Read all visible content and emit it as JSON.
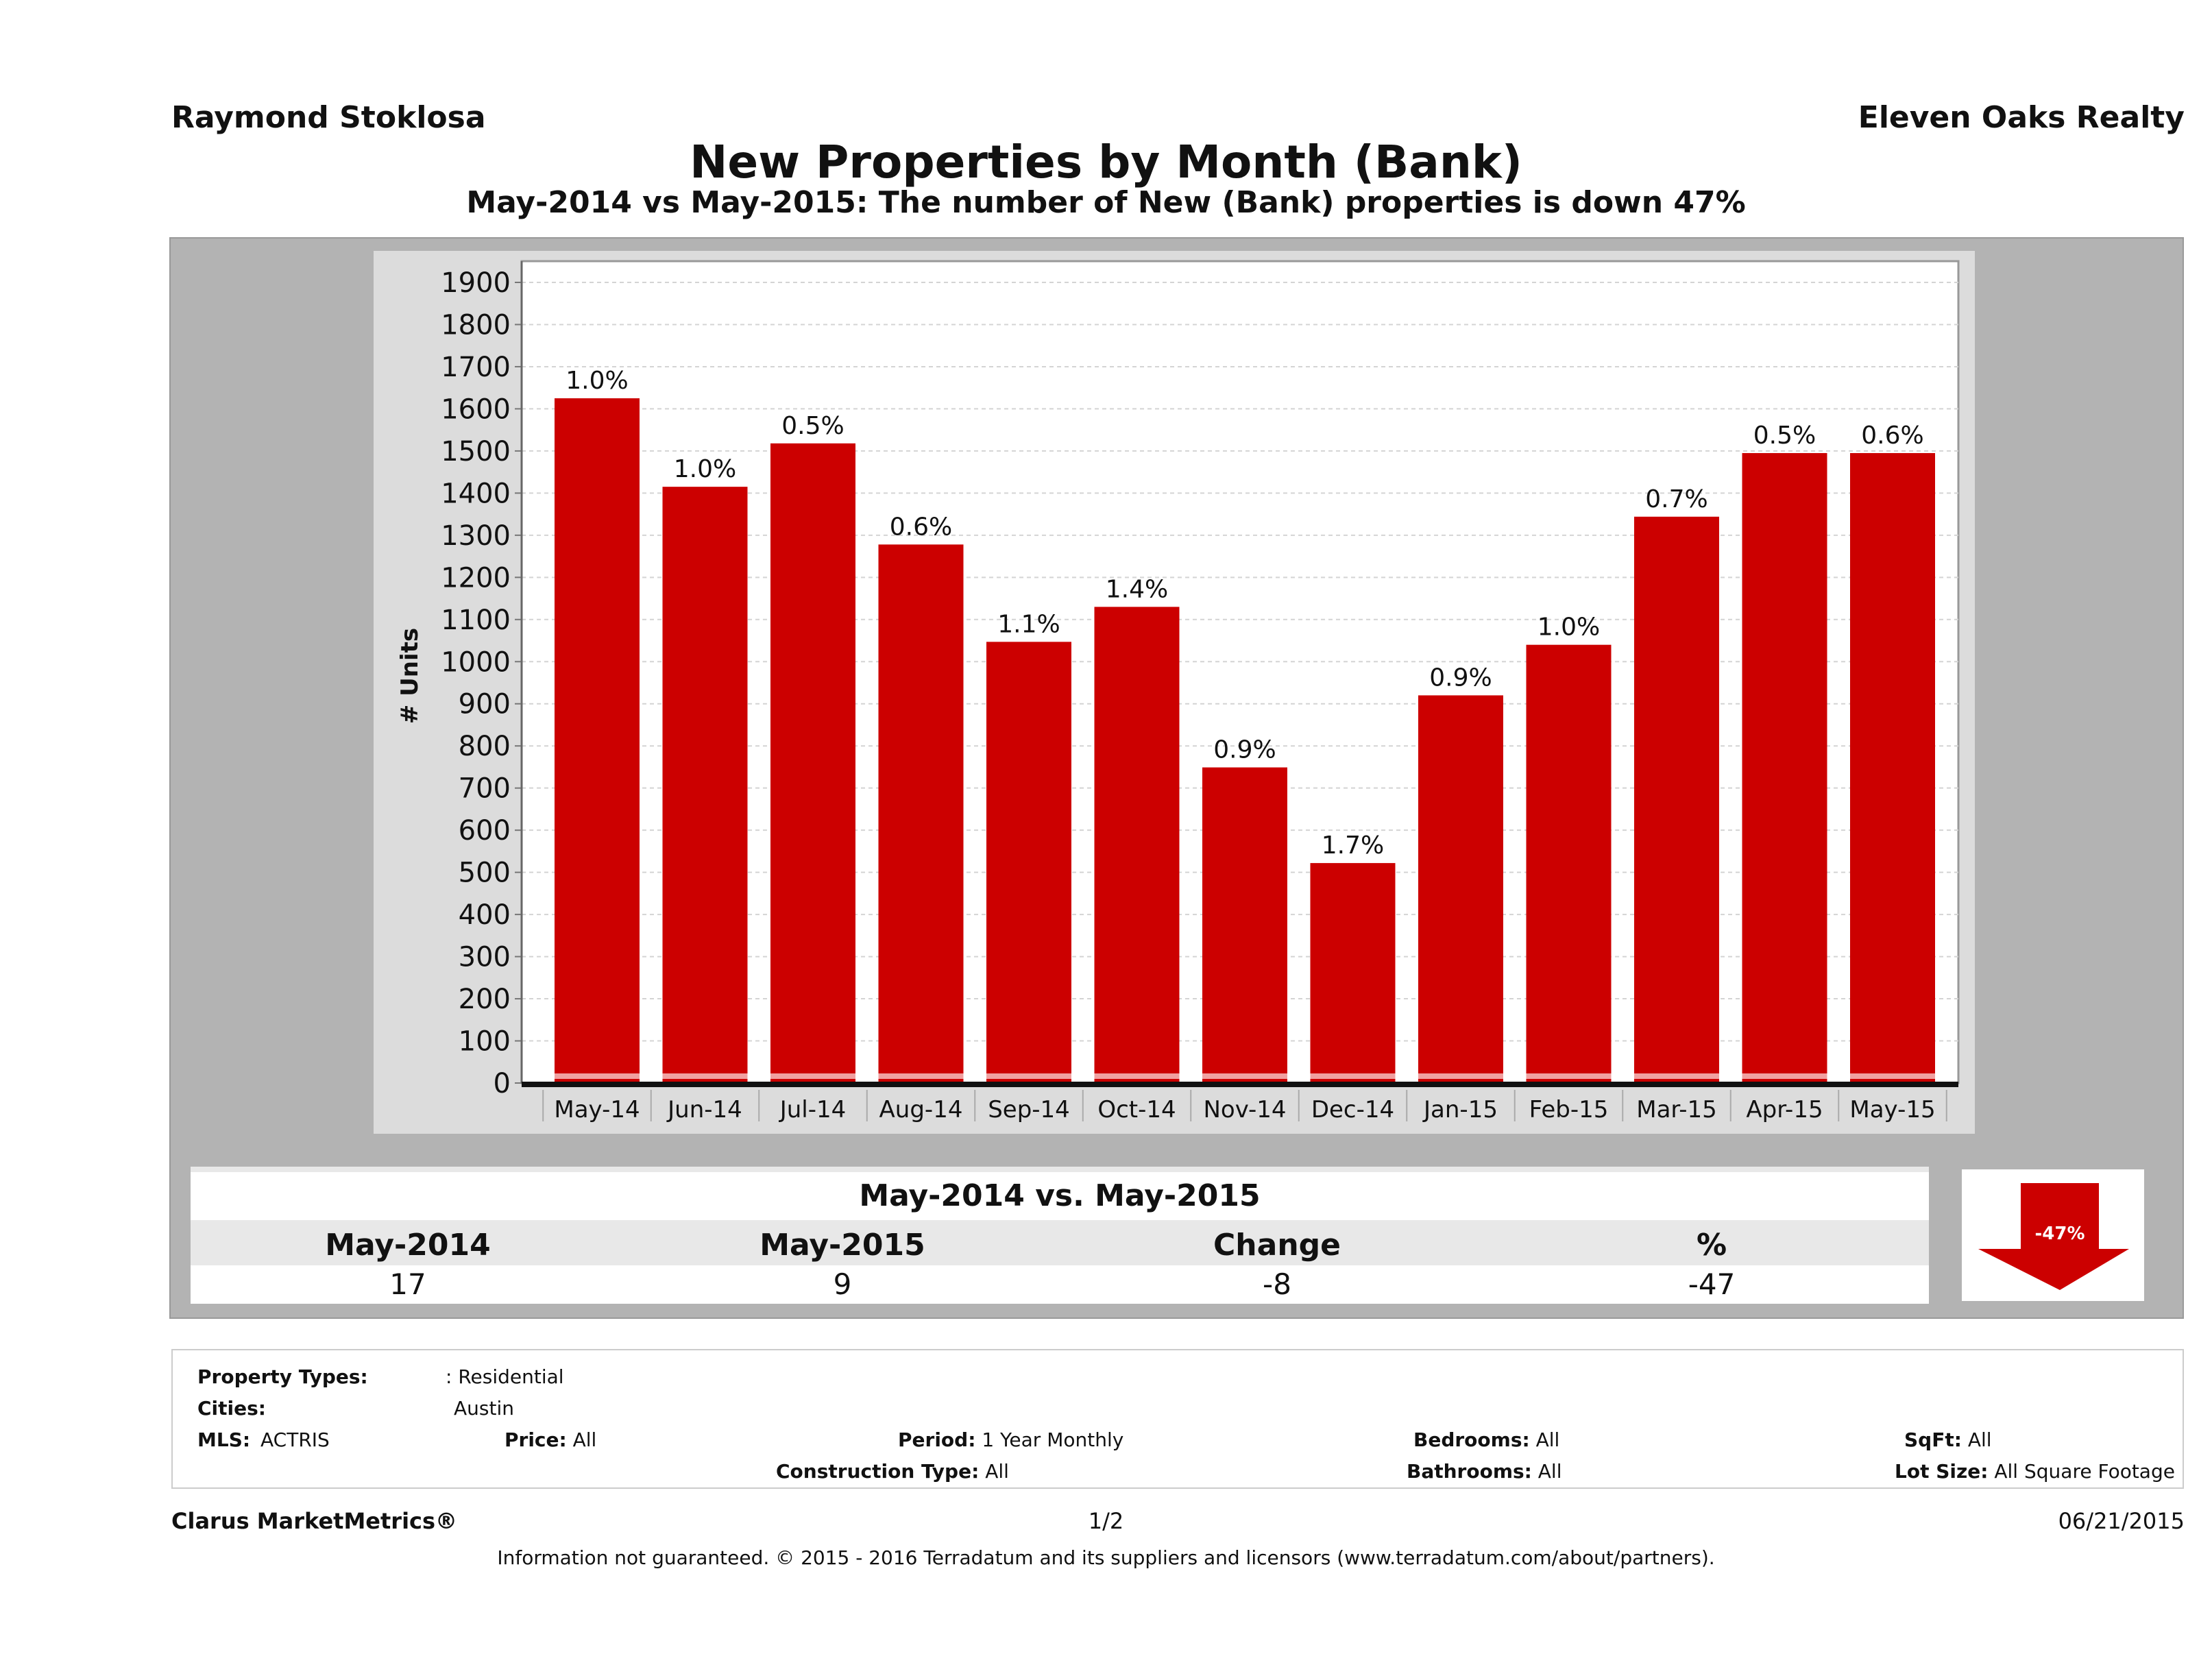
{
  "header": {
    "agent_name": "Raymond Stoklosa",
    "company_name": "Eleven Oaks Realty",
    "title": "New Properties by Month (Bank)",
    "subtitle": "May-2014 vs May-2015: The number of New (Bank)  properties is down 47%"
  },
  "chart_data": {
    "type": "bar",
    "title": "New Properties by Month (Bank)",
    "xlabel": "",
    "ylabel": "# Units",
    "ylim": [
      0,
      1900
    ],
    "yticks": [
      0,
      100,
      200,
      300,
      400,
      500,
      600,
      700,
      800,
      900,
      1000,
      1100,
      1200,
      1300,
      1400,
      1500,
      1600,
      1700,
      1800,
      1900
    ],
    "grid": true,
    "bar_color": "#cc0000",
    "categories": [
      "May-14",
      "Jun-14",
      "Jul-14",
      "Aug-14",
      "Sep-14",
      "Oct-14",
      "Nov-14",
      "Dec-14",
      "Jan-15",
      "Feb-15",
      "Mar-15",
      "Apr-15",
      "May-15"
    ],
    "values": [
      1625,
      1415,
      1518,
      1278,
      1047,
      1130,
      749,
      522,
      920,
      1040,
      1344,
      1495,
      1495
    ],
    "data_labels": [
      "1.0%",
      "1.0%",
      "0.5%",
      "0.6%",
      "1.1%",
      "1.4%",
      "0.9%",
      "1.7%",
      "0.9%",
      "1.0%",
      "0.7%",
      "0.5%",
      "0.6%"
    ]
  },
  "summary": {
    "heading": "May-2014 vs. May-2015",
    "columns": [
      "May-2014",
      "May-2015",
      "Change",
      "%"
    ],
    "values": [
      "17",
      "9",
      "-8",
      "-47"
    ],
    "arrow_label": "-47%",
    "arrow_color": "#cc0000"
  },
  "criteria": {
    "property_types_label": "Property Types:",
    "property_types_value": ": Residential",
    "cities_label": "Cities:",
    "cities_value": "Austin",
    "mls_label": "MLS:",
    "mls_value": "ACTRIS",
    "price_label": "Price:",
    "price_value": "All",
    "period_label": "Period:",
    "period_value": "1 Year Monthly",
    "construction_label": "Construction Type:",
    "construction_value": "All",
    "bedrooms_label": "Bedrooms:",
    "bedrooms_value": "All",
    "bathrooms_label": "Bathrooms:",
    "bathrooms_value": "All",
    "sqft_label": "SqFt:",
    "sqft_value": "All",
    "lot_label": "Lot Size:",
    "lot_value": "All Square Footage"
  },
  "footer": {
    "brand": "Clarus MarketMetrics®",
    "page": "1/2",
    "date": "06/21/2015",
    "disclaimer": "Information not guaranteed. © 2015 - 2016 Terradatum and its suppliers and licensors (www.terradatum.com/about/partners)."
  }
}
